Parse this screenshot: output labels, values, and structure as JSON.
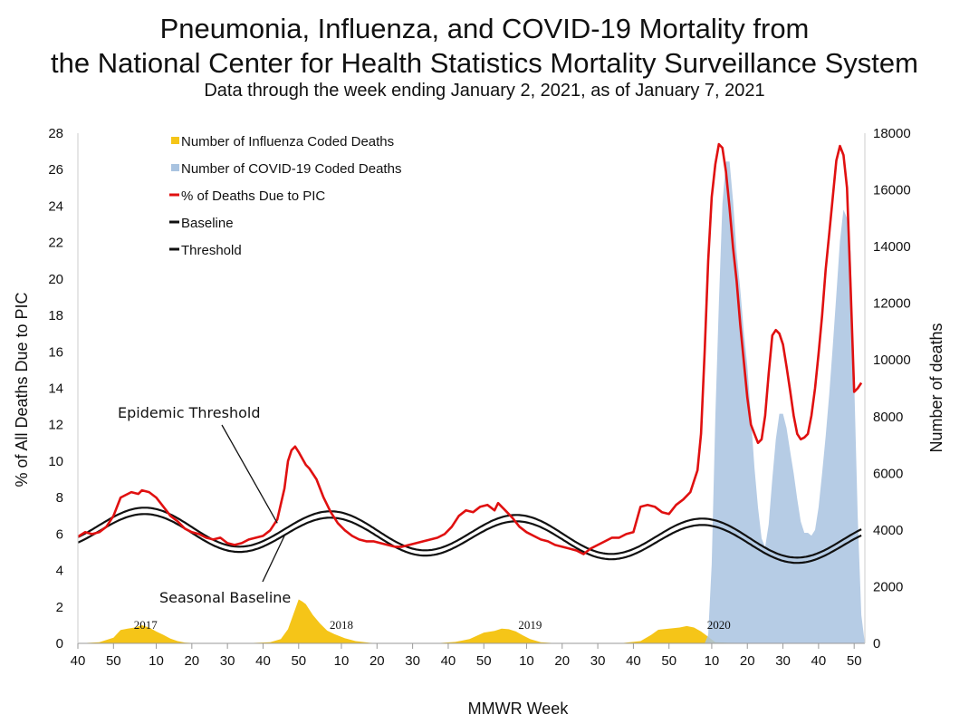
{
  "chart_data": {
    "type": "area",
    "title": "Pneumonia, Influenza, and COVID-19 Mortality from",
    "title_line2": "the National Center for Health Statistics Mortality Surveillance System",
    "subtitle": "Data through the week ending January 2, 2021, as of January 7, 2021",
    "xlabel": "MMWR Week",
    "ylabel_left": "% of All Deaths Due to PIC",
    "ylabel_right": "Number of deaths",
    "ylim_left": [
      0,
      28
    ],
    "ylim_right": [
      0,
      18000
    ],
    "yticks_left": [
      "0",
      "2",
      "4",
      "6",
      "8",
      "10",
      "12",
      "14",
      "16",
      "18",
      "20",
      "22",
      "24",
      "26",
      "28"
    ],
    "yticks_right": [
      "0",
      "2000",
      "4000",
      "6000",
      "8000",
      "10000",
      "12000",
      "14000",
      "16000",
      "18000"
    ],
    "x_ticks": [
      "40",
      "50",
      "10",
      "20",
      "30",
      "40",
      "50",
      "10",
      "20",
      "30",
      "40",
      "50",
      "10",
      "20",
      "30",
      "40",
      "50",
      "10",
      "20",
      "30",
      "40",
      "50"
    ],
    "season_labels": [
      "2017",
      "2018",
      "2019",
      "2020"
    ],
    "legend_position": "top-left",
    "grid": false,
    "annotations": [
      "Epidemic Threshold",
      "Seasonal Baseline"
    ],
    "x_index_note": "weeks since 2016 week 40",
    "series": [
      {
        "name": "Number of Influenza Coded Deaths",
        "kind": "area",
        "axis": "right",
        "color": "#f5c518",
        "points": [
          [
            0,
            0
          ],
          [
            6,
            40
          ],
          [
            10,
            200
          ],
          [
            12,
            470
          ],
          [
            14,
            520
          ],
          [
            16,
            560
          ],
          [
            18,
            640
          ],
          [
            20,
            560
          ],
          [
            22,
            420
          ],
          [
            24,
            300
          ],
          [
            26,
            170
          ],
          [
            28,
            80
          ],
          [
            30,
            30
          ],
          [
            34,
            0
          ],
          [
            46,
            0
          ],
          [
            54,
            40
          ],
          [
            57,
            150
          ],
          [
            59,
            500
          ],
          [
            61,
            1200
          ],
          [
            62,
            1550
          ],
          [
            63,
            1480
          ],
          [
            64,
            1380
          ],
          [
            66,
            1000
          ],
          [
            68,
            700
          ],
          [
            70,
            450
          ],
          [
            72,
            330
          ],
          [
            75,
            180
          ],
          [
            78,
            80
          ],
          [
            82,
            20
          ],
          [
            86,
            0
          ],
          [
            100,
            0
          ],
          [
            106,
            50
          ],
          [
            110,
            150
          ],
          [
            114,
            380
          ],
          [
            117,
            440
          ],
          [
            119,
            520
          ],
          [
            121,
            500
          ],
          [
            123,
            420
          ],
          [
            125,
            280
          ],
          [
            127,
            150
          ],
          [
            130,
            40
          ],
          [
            135,
            0
          ],
          [
            152,
            0
          ],
          [
            158,
            80
          ],
          [
            161,
            300
          ],
          [
            163,
            480
          ],
          [
            166,
            520
          ],
          [
            169,
            560
          ],
          [
            171,
            610
          ],
          [
            173,
            560
          ],
          [
            175,
            420
          ],
          [
            177,
            230
          ],
          [
            179,
            40
          ],
          [
            183,
            20
          ],
          [
            190,
            10
          ],
          [
            200,
            5
          ],
          [
            209,
            0
          ]
        ]
      },
      {
        "name": "Number of COVID-19 Coded Deaths",
        "kind": "area",
        "axis": "right",
        "color": "#a9c3e0",
        "points": [
          [
            176,
            0
          ],
          [
            177,
            300
          ],
          [
            178,
            2800
          ],
          [
            179,
            8000
          ],
          [
            180,
            12000
          ],
          [
            181,
            15500
          ],
          [
            182,
            17000
          ],
          [
            183,
            17000
          ],
          [
            184,
            15600
          ],
          [
            185,
            13800
          ],
          [
            186,
            12500
          ],
          [
            187,
            11000
          ],
          [
            188,
            9800
          ],
          [
            189,
            8000
          ],
          [
            190,
            6200
          ],
          [
            191,
            4800
          ],
          [
            192,
            3700
          ],
          [
            193,
            3400
          ],
          [
            194,
            4200
          ],
          [
            195,
            5800
          ],
          [
            196,
            7200
          ],
          [
            197,
            8100
          ],
          [
            198,
            8100
          ],
          [
            199,
            7600
          ],
          [
            200,
            6800
          ],
          [
            201,
            6000
          ],
          [
            202,
            5100
          ],
          [
            203,
            4300
          ],
          [
            204,
            3900
          ],
          [
            205,
            3900
          ],
          [
            206,
            3800
          ],
          [
            207,
            4000
          ],
          [
            208,
            4800
          ],
          [
            209,
            6000
          ],
          [
            210,
            7300
          ],
          [
            211,
            8800
          ],
          [
            212,
            10500
          ],
          [
            213,
            12300
          ],
          [
            214,
            14200
          ],
          [
            215,
            15300
          ],
          [
            216,
            15000
          ],
          [
            217,
            13800
          ],
          [
            218,
            9300
          ],
          [
            219,
            4500
          ],
          [
            220,
            1000
          ],
          [
            221,
            0
          ]
        ]
      },
      {
        "name": "% of Deaths Due to PIC",
        "kind": "line",
        "axis": "left",
        "color": "#e01010",
        "points": [
          [
            0,
            5.85
          ],
          [
            2,
            6.1
          ],
          [
            4,
            6.0
          ],
          [
            6,
            6.1
          ],
          [
            8,
            6.4
          ],
          [
            10,
            7.0
          ],
          [
            12,
            8.0
          ],
          [
            13,
            8.1
          ],
          [
            15,
            8.3
          ],
          [
            17,
            8.2
          ],
          [
            18,
            8.4
          ],
          [
            20,
            8.3
          ],
          [
            22,
            8.0
          ],
          [
            24,
            7.5
          ],
          [
            26,
            7.0
          ],
          [
            28,
            6.7
          ],
          [
            30,
            6.3
          ],
          [
            32,
            6.1
          ],
          [
            34,
            6.0
          ],
          [
            36,
            5.8
          ],
          [
            38,
            5.7
          ],
          [
            40,
            5.8
          ],
          [
            42,
            5.5
          ],
          [
            44,
            5.4
          ],
          [
            46,
            5.5
          ],
          [
            48,
            5.7
          ],
          [
            50,
            5.8
          ],
          [
            52,
            5.9
          ],
          [
            54,
            6.2
          ],
          [
            56,
            6.8
          ],
          [
            58,
            8.5
          ],
          [
            59,
            10.0
          ],
          [
            60,
            10.6
          ],
          [
            61,
            10.8
          ],
          [
            62,
            10.5
          ],
          [
            64,
            9.8
          ],
          [
            65,
            9.6
          ],
          [
            67,
            9.0
          ],
          [
            69,
            8.0
          ],
          [
            71,
            7.2
          ],
          [
            73,
            6.6
          ],
          [
            75,
            6.2
          ],
          [
            77,
            5.9
          ],
          [
            79,
            5.7
          ],
          [
            81,
            5.6
          ],
          [
            83,
            5.6
          ],
          [
            85,
            5.5
          ],
          [
            87,
            5.4
          ],
          [
            89,
            5.3
          ],
          [
            91,
            5.3
          ],
          [
            93,
            5.4
          ],
          [
            95,
            5.5
          ],
          [
            97,
            5.6
          ],
          [
            99,
            5.7
          ],
          [
            101,
            5.8
          ],
          [
            103,
            6.0
          ],
          [
            105,
            6.4
          ],
          [
            107,
            7.0
          ],
          [
            109,
            7.3
          ],
          [
            111,
            7.2
          ],
          [
            113,
            7.5
          ],
          [
            115,
            7.6
          ],
          [
            117,
            7.3
          ],
          [
            118,
            7.7
          ],
          [
            120,
            7.3
          ],
          [
            122,
            6.9
          ],
          [
            124,
            6.4
          ],
          [
            126,
            6.1
          ],
          [
            128,
            5.9
          ],
          [
            130,
            5.7
          ],
          [
            132,
            5.6
          ],
          [
            134,
            5.4
          ],
          [
            136,
            5.3
          ],
          [
            138,
            5.2
          ],
          [
            140,
            5.1
          ],
          [
            142,
            4.9
          ],
          [
            144,
            5.2
          ],
          [
            146,
            5.4
          ],
          [
            148,
            5.6
          ],
          [
            150,
            5.8
          ],
          [
            152,
            5.8
          ],
          [
            154,
            6.0
          ],
          [
            156,
            6.1
          ],
          [
            158,
            7.5
          ],
          [
            160,
            7.6
          ],
          [
            162,
            7.5
          ],
          [
            164,
            7.2
          ],
          [
            166,
            7.1
          ],
          [
            168,
            7.6
          ],
          [
            170,
            7.9
          ],
          [
            172,
            8.3
          ],
          [
            174,
            9.5
          ],
          [
            175,
            11.5
          ],
          [
            176,
            16.0
          ],
          [
            177,
            21.0
          ],
          [
            178,
            24.5
          ],
          [
            179,
            26.3
          ],
          [
            180,
            27.4
          ],
          [
            181,
            27.2
          ],
          [
            182,
            25.9
          ],
          [
            183,
            23.9
          ],
          [
            184,
            21.7
          ],
          [
            185,
            19.9
          ],
          [
            186,
            17.5
          ],
          [
            187,
            15.5
          ],
          [
            188,
            13.5
          ],
          [
            189,
            12.0
          ],
          [
            190,
            11.5
          ],
          [
            191,
            11.0
          ],
          [
            192,
            11.2
          ],
          [
            193,
            12.5
          ],
          [
            194,
            14.8
          ],
          [
            195,
            16.9
          ],
          [
            196,
            17.2
          ],
          [
            197,
            17.0
          ],
          [
            198,
            16.4
          ],
          [
            199,
            15.2
          ],
          [
            200,
            13.9
          ],
          [
            201,
            12.5
          ],
          [
            202,
            11.5
          ],
          [
            203,
            11.2
          ],
          [
            204,
            11.3
          ],
          [
            205,
            11.5
          ],
          [
            206,
            12.5
          ],
          [
            207,
            14.0
          ],
          [
            208,
            15.9
          ],
          [
            209,
            18.0
          ],
          [
            210,
            20.5
          ],
          [
            211,
            22.5
          ],
          [
            212,
            24.5
          ],
          [
            213,
            26.5
          ],
          [
            214,
            27.3
          ],
          [
            215,
            26.8
          ],
          [
            216,
            25.0
          ],
          [
            217,
            19.5
          ],
          [
            218,
            13.8
          ],
          [
            219,
            14.0
          ],
          [
            220,
            14.3
          ]
        ]
      },
      {
        "name": "Baseline",
        "kind": "line",
        "axis": "left",
        "color": "#111111",
        "wave": {
          "mean": 6.18,
          "amplitude": 0.99,
          "first_peak_week": 19,
          "period": 52.2,
          "mean_drift_per_year": -0.2
        }
      },
      {
        "name": "Threshold",
        "kind": "line",
        "axis": "left",
        "color": "#111111",
        "wave": {
          "mean": 6.5,
          "amplitude": 1.02,
          "first_peak_week": 19,
          "period": 52.2,
          "mean_drift_per_year": -0.2
        }
      }
    ]
  }
}
